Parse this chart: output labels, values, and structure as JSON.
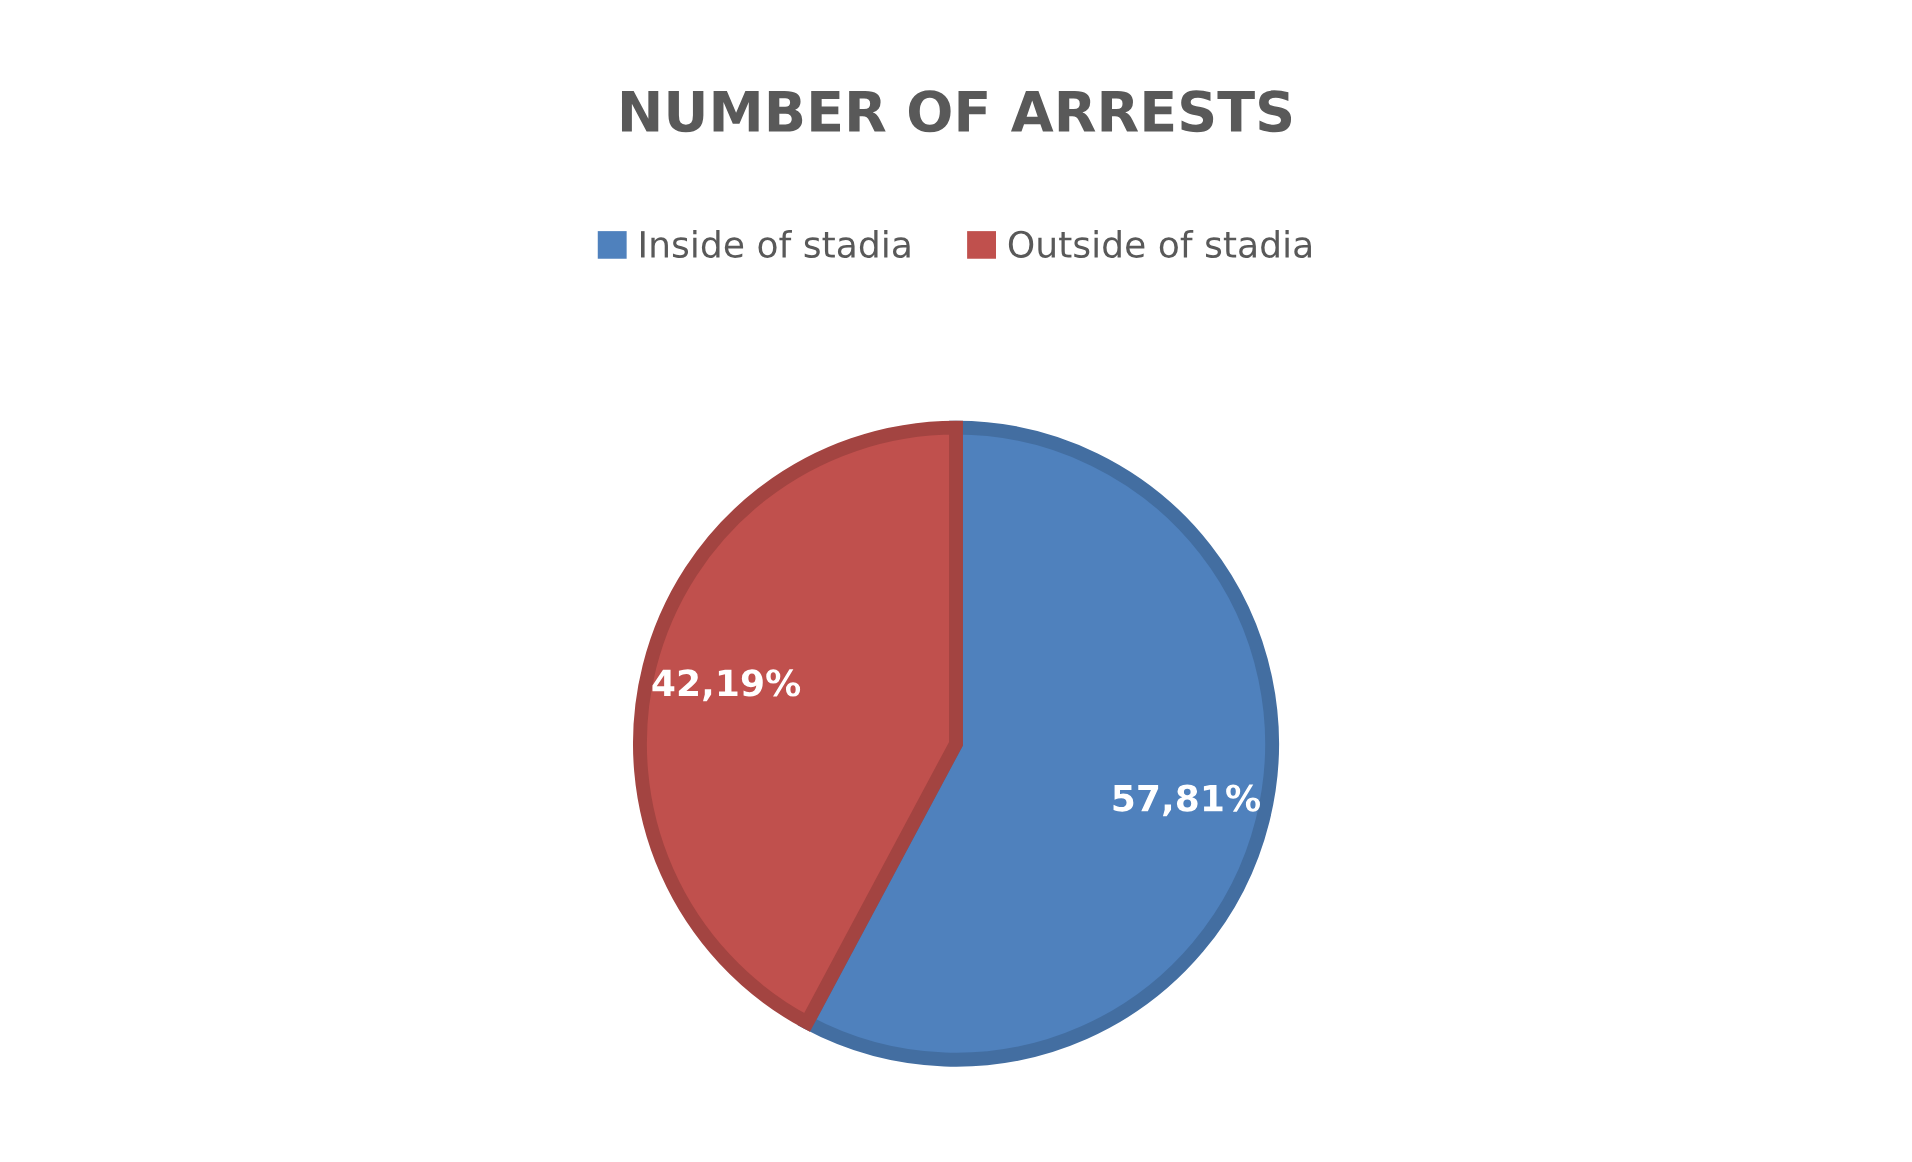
{
  "chart_data": {
    "type": "pie",
    "title": "NUMBER OF ARRESTS",
    "categories": [
      "Inside of stadia",
      "Outside of stadia"
    ],
    "values": [
      57.81,
      42.19
    ],
    "colors": [
      "#4f81bd",
      "#c0504d"
    ],
    "value_labels": [
      "57,81%",
      "42,19%"
    ],
    "legend": "top"
  }
}
